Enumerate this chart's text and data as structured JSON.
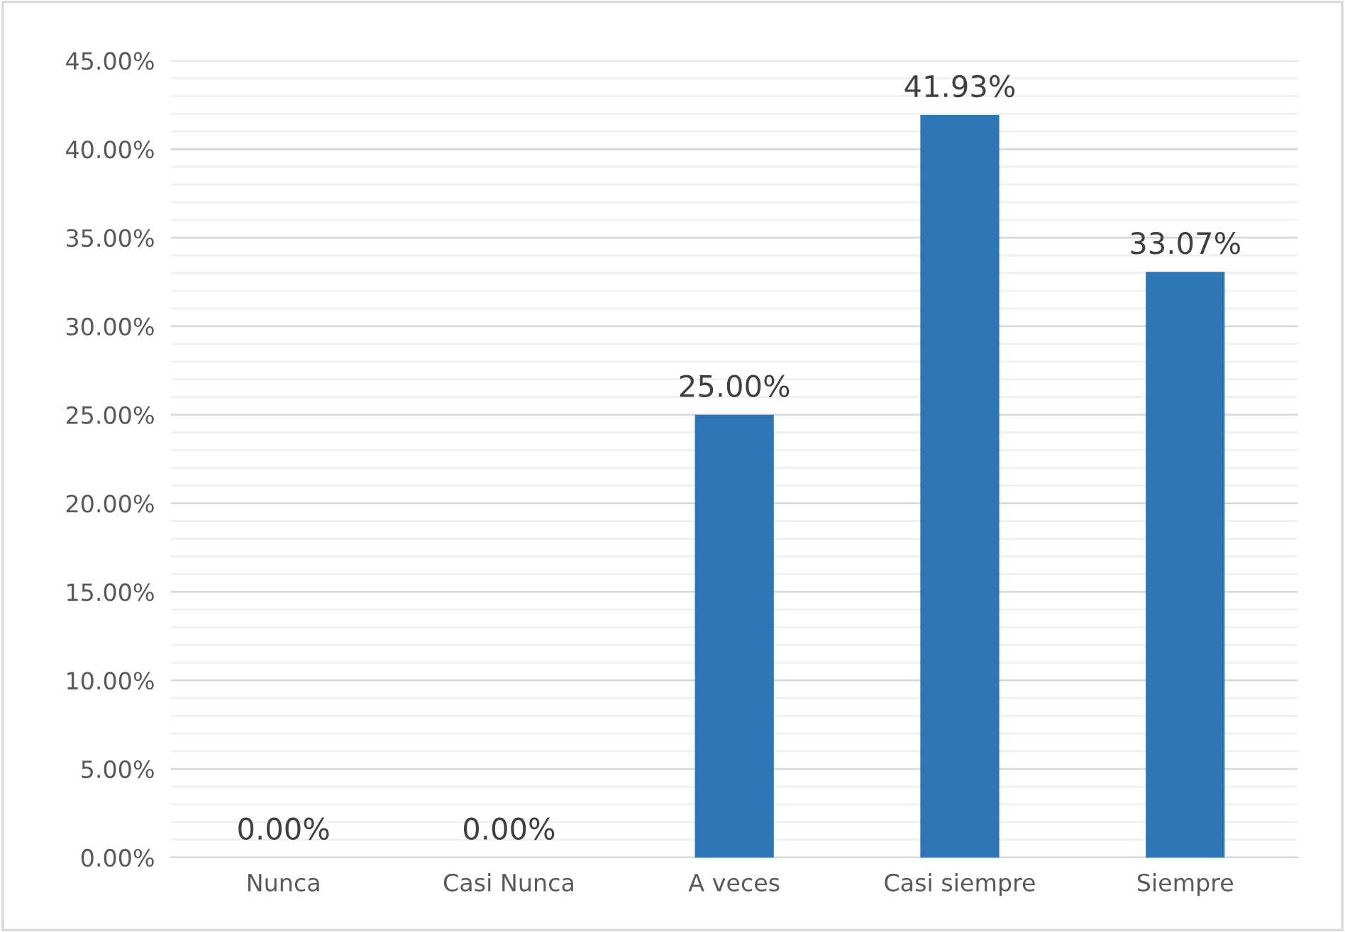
{
  "chart_data": {
    "type": "bar",
    "categories": [
      "Nunca",
      "Casi Nunca",
      "A veces",
      "Casi siempre",
      "Siempre"
    ],
    "values": [
      0,
      0,
      25,
      41.93,
      33.07
    ],
    "value_labels": [
      "0.00%",
      "0.00%",
      "25.00%",
      "41.93%",
      "33.07%"
    ],
    "color": "#2e75b6",
    "ylim": [
      0,
      45
    ],
    "yticks": [
      {
        "value": 0,
        "label": "0.00%"
      },
      {
        "value": 5,
        "label": "5.00%"
      },
      {
        "value": 10,
        "label": "10.00%"
      },
      {
        "value": 15,
        "label": "15.00%"
      },
      {
        "value": 20,
        "label": "20.00%"
      },
      {
        "value": 25,
        "label": "25.00%"
      },
      {
        "value": 30,
        "label": "30.00%"
      },
      {
        "value": 35,
        "label": "35.00%"
      },
      {
        "value": 40,
        "label": "40.00%"
      },
      {
        "value": 45,
        "label": "45.00%"
      }
    ],
    "grid": "y"
  }
}
